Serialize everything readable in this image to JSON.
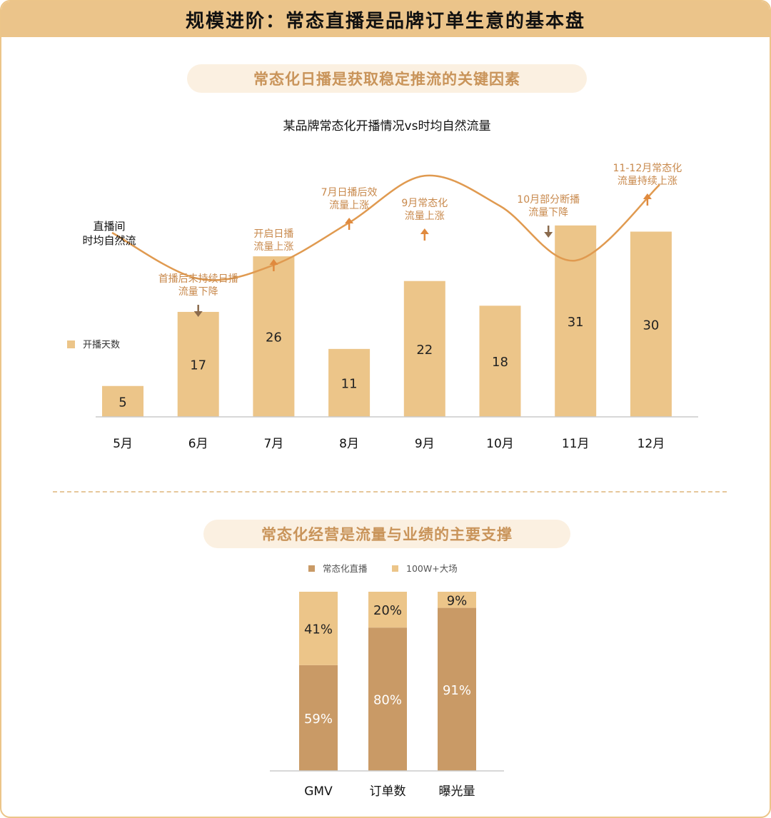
{
  "header": {
    "title": "规模进阶：常态直播是品牌订单生意的基本盘"
  },
  "section1": {
    "heading": "常态化日播是获取稳定推流的关键因素"
  },
  "section2": {
    "heading": "常态化经营是流量与业绩的主要支撑"
  },
  "colors": {
    "bar": "#ecc589",
    "curve": "#e09a50",
    "annotation": "#c8894c",
    "arrow_up": "#e08a3e",
    "arrow_down": "#8a6a4c",
    "dark_seg": "#c99a66",
    "light_seg": "#ecc589"
  },
  "chart_data": [
    {
      "type": "bar",
      "title": "某品牌常态化开播情况vs时均自然流量",
      "categories": [
        "5月",
        "6月",
        "7月",
        "8月",
        "9月",
        "10月",
        "11月",
        "12月"
      ],
      "series": [
        {
          "name": "开播天数",
          "values": [
            5,
            17,
            26,
            11,
            22,
            18,
            31,
            30
          ]
        }
      ],
      "ylim": [
        0,
        40
      ],
      "line_series": {
        "name": "直播间时均自然流",
        "lines": [
          "直播间",
          "时均自然流"
        ],
        "relative_trend": [
          0.47,
          0.7,
          0.61,
          0.33,
          0.02,
          0.22,
          0.58,
          0.08
        ]
      },
      "annotations": [
        {
          "category": "6月",
          "lines": [
            "首播后未持续日播",
            "流量下降"
          ],
          "direction": "down"
        },
        {
          "category": "7月",
          "lines": [
            "开启日播",
            "流量上涨"
          ],
          "direction": "up"
        },
        {
          "category": "8月",
          "lines": [
            "7月日播后效",
            "流量上涨"
          ],
          "direction": "up"
        },
        {
          "category": "9月",
          "lines": [
            "9月常态化",
            "流量上涨"
          ],
          "direction": "up"
        },
        {
          "category": "11月",
          "lines": [
            "10月部分断播",
            "流量下降"
          ],
          "direction": "down"
        },
        {
          "category": "12月",
          "lines": [
            "11-12月常态化",
            "流量持续上涨"
          ],
          "direction": "up"
        }
      ],
      "legend_position": "left",
      "grid": false
    },
    {
      "type": "bar",
      "stacked": true,
      "percent": true,
      "categories": [
        "GMV",
        "订单数",
        "曝光量"
      ],
      "series": [
        {
          "name": "常态化直播",
          "values": [
            59,
            80,
            91
          ]
        },
        {
          "name": "100W+大场",
          "values": [
            41,
            20,
            9
          ]
        }
      ],
      "legend_position": "top",
      "grid": false
    }
  ]
}
